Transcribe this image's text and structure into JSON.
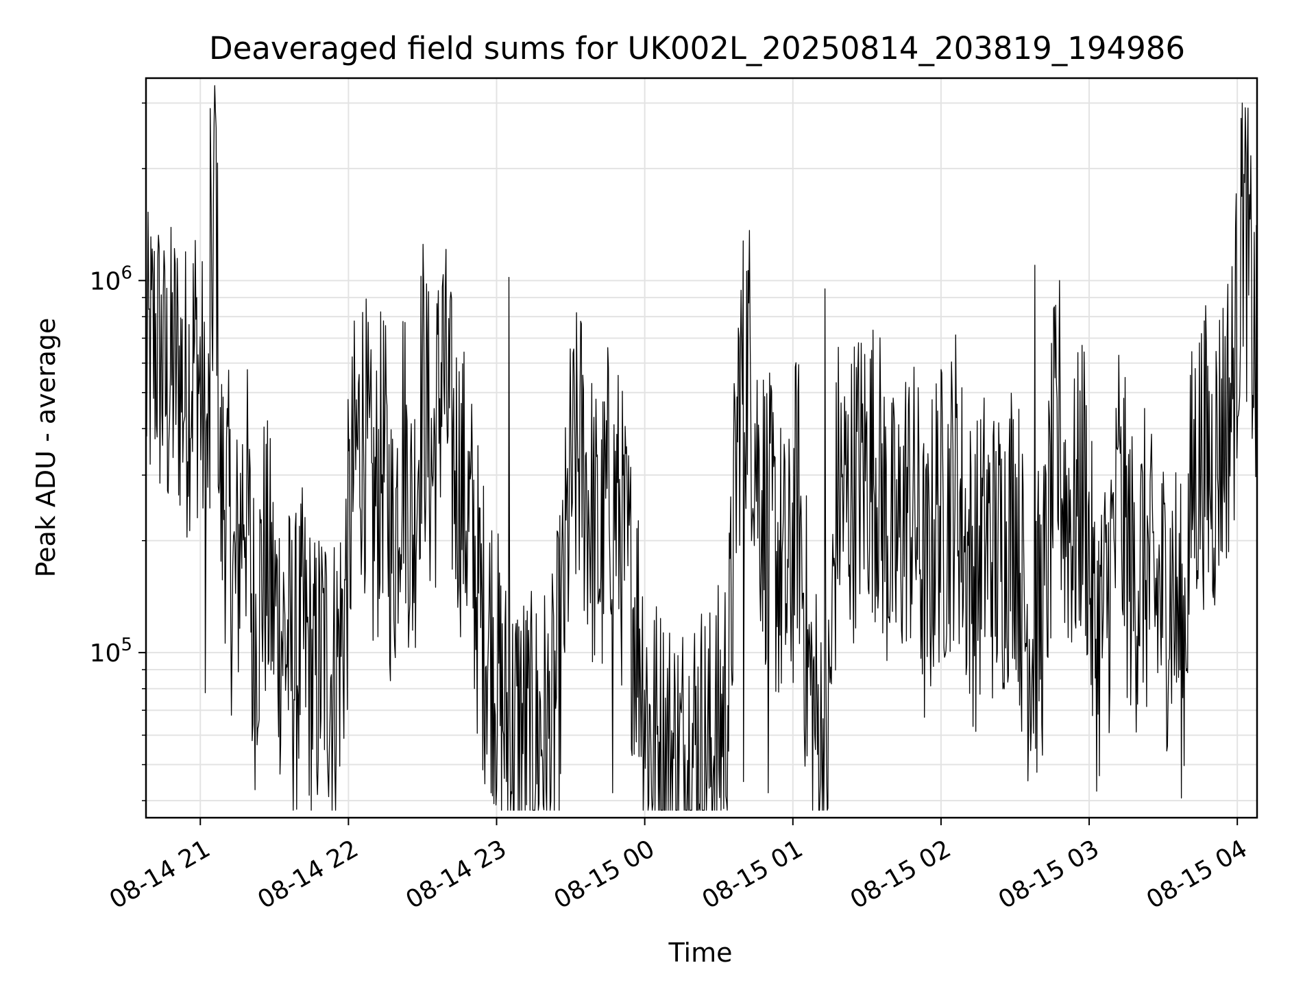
{
  "chart_data": {
    "type": "line",
    "title": "Deaveraged field sums for UK002L_20250814_203819_194986",
    "xlabel": "Time",
    "ylabel": "Peak ADU - average",
    "y_scale": "log",
    "grid": true,
    "x_range": [
      "2025-08-14 20:38",
      "2025-08-15 04:08"
    ],
    "ylim": [
      36000,
      3500000
    ],
    "x_ticks": [
      {
        "time": "2025-08-14 21:00",
        "label": "08-14 21"
      },
      {
        "time": "2025-08-14 22:00",
        "label": "08-14 22"
      },
      {
        "time": "2025-08-14 23:00",
        "label": "08-14 23"
      },
      {
        "time": "2025-08-15 00:00",
        "label": "08-15 00"
      },
      {
        "time": "2025-08-15 01:00",
        "label": "08-15 01"
      },
      {
        "time": "2025-08-15 02:00",
        "label": "08-15 02"
      },
      {
        "time": "2025-08-15 03:00",
        "label": "08-15 03"
      },
      {
        "time": "2025-08-15 04:00",
        "label": "08-15 04"
      }
    ],
    "y_ticks": [
      {
        "value": 100000,
        "base": "10",
        "exp": "5"
      },
      {
        "value": 1000000,
        "base": "10",
        "exp": "6"
      }
    ],
    "line_color": "#000000",
    "series": [
      {
        "x": [
          "2025-08-14 20:38",
          "2025-08-14 20:42",
          "2025-08-14 20:46",
          "2025-08-14 20:50",
          "2025-08-14 20:54",
          "2025-08-14 20:58",
          "2025-08-14 21:01",
          "2025-08-14 21:02",
          "2025-08-14 21:04",
          "2025-08-14 21:06",
          "2025-08-14 21:08",
          "2025-08-14 21:10",
          "2025-08-14 21:14",
          "2025-08-14 21:18",
          "2025-08-14 21:22",
          "2025-08-14 21:26",
          "2025-08-14 21:30",
          "2025-08-14 21:34",
          "2025-08-14 21:38",
          "2025-08-14 21:42",
          "2025-08-14 21:46",
          "2025-08-14 21:50",
          "2025-08-14 21:54",
          "2025-08-14 21:58",
          "2025-08-14 22:02",
          "2025-08-14 22:06",
          "2025-08-14 22:10",
          "2025-08-14 22:14",
          "2025-08-14 22:18",
          "2025-08-14 22:22",
          "2025-08-14 22:26",
          "2025-08-14 22:30",
          "2025-08-14 22:34",
          "2025-08-14 22:38",
          "2025-08-14 22:42",
          "2025-08-14 22:46",
          "2025-08-14 22:50",
          "2025-08-14 22:54",
          "2025-08-14 22:58",
          "2025-08-14 23:02",
          "2025-08-14 23:06",
          "2025-08-14 23:10",
          "2025-08-14 23:14",
          "2025-08-14 23:18",
          "2025-08-14 23:22",
          "2025-08-14 23:26",
          "2025-08-14 23:30",
          "2025-08-14 23:34",
          "2025-08-14 23:38",
          "2025-08-14 23:42",
          "2025-08-14 23:46",
          "2025-08-14 23:50",
          "2025-08-14 23:54",
          "2025-08-14 23:58",
          "2025-08-15 00:02",
          "2025-08-15 00:06",
          "2025-08-15 00:10",
          "2025-08-15 00:14",
          "2025-08-15 00:18",
          "2025-08-15 00:22",
          "2025-08-15 00:26",
          "2025-08-15 00:30",
          "2025-08-15 00:34",
          "2025-08-15 00:38",
          "2025-08-15 00:42",
          "2025-08-15 00:46",
          "2025-08-15 00:50",
          "2025-08-15 00:54",
          "2025-08-15 00:58",
          "2025-08-15 01:02",
          "2025-08-15 01:06",
          "2025-08-15 01:10",
          "2025-08-15 01:14",
          "2025-08-15 01:18",
          "2025-08-15 01:22",
          "2025-08-15 01:26",
          "2025-08-15 01:30",
          "2025-08-15 01:34",
          "2025-08-15 01:38",
          "2025-08-15 01:42",
          "2025-08-15 01:46",
          "2025-08-15 01:50",
          "2025-08-15 01:54",
          "2025-08-15 01:58",
          "2025-08-15 02:02",
          "2025-08-15 02:06",
          "2025-08-15 02:10",
          "2025-08-15 02:14",
          "2025-08-15 02:18",
          "2025-08-15 02:22",
          "2025-08-15 02:26",
          "2025-08-15 02:30",
          "2025-08-15 02:34",
          "2025-08-15 02:38",
          "2025-08-15 02:42",
          "2025-08-15 02:46",
          "2025-08-15 02:50",
          "2025-08-15 02:54",
          "2025-08-15 02:58",
          "2025-08-15 03:02",
          "2025-08-15 03:06",
          "2025-08-15 03:10",
          "2025-08-15 03:14",
          "2025-08-15 03:18",
          "2025-08-15 03:22",
          "2025-08-15 03:26",
          "2025-08-15 03:30",
          "2025-08-15 03:34",
          "2025-08-15 03:38",
          "2025-08-15 03:42",
          "2025-08-15 03:46",
          "2025-08-15 03:50",
          "2025-08-15 03:54",
          "2025-08-15 03:58",
          "2025-08-15 04:01",
          "2025-08-15 04:03",
          "2025-08-15 04:05",
          "2025-08-15 04:08"
        ],
        "y": [
          550000,
          700000,
          500000,
          600000,
          500000,
          650000,
          450000,
          300000,
          380000,
          2900000,
          250000,
          280000,
          140000,
          300000,
          110000,
          180000,
          130000,
          110000,
          90000,
          110000,
          80000,
          100000,
          85000,
          120000,
          300000,
          420000,
          220000,
          350000,
          180000,
          400000,
          200000,
          550000,
          300000,
          600000,
          350000,
          280000,
          200000,
          120000,
          110000,
          70000,
          60000,
          65000,
          55000,
          62000,
          58000,
          100000,
          280000,
          350000,
          240000,
          180000,
          300000,
          220000,
          150000,
          110000,
          60000,
          55000,
          52000,
          50000,
          55000,
          58000,
          52000,
          60000,
          80000,
          480000,
          650000,
          300000,
          220000,
          180000,
          140000,
          280000,
          90000,
          60000,
          50000,
          280000,
          250000,
          300000,
          320000,
          320000,
          220000,
          180000,
          260000,
          230000,
          140000,
          240000,
          230000,
          300000,
          190000,
          160000,
          210000,
          180000,
          200000,
          250000,
          120000,
          110000,
          140000,
          350000,
          260000,
          220000,
          300000,
          110000,
          120000,
          200000,
          220000,
          150000,
          180000,
          140000,
          140000,
          150000,
          100000,
          300000,
          350000,
          300000,
          400000,
          500000,
          1000000,
          1400000,
          1000000,
          500000
        ],
        "spikes": [
          {
            "x": "2025-08-14 20:45",
            "y": 920000
          },
          {
            "x": "2025-08-14 21:04",
            "y": 2900000
          },
          {
            "x": "2025-08-14 21:02",
            "y": 78000
          },
          {
            "x": "2025-08-14 21:21",
            "y": 58000
          },
          {
            "x": "2025-08-14 22:38",
            "y": 960000
          },
          {
            "x": "2025-08-14 23:05",
            "y": 1020000
          },
          {
            "x": "2025-08-14 23:47",
            "y": 42000
          },
          {
            "x": "2025-08-15 00:40",
            "y": 45000
          },
          {
            "x": "2025-08-15 00:50",
            "y": 42000
          },
          {
            "x": "2025-08-15 01:13",
            "y": 950000
          },
          {
            "x": "2025-08-15 02:38",
            "y": 1100000
          },
          {
            "x": "2025-08-15 02:48",
            "y": 1000000
          },
          {
            "x": "2025-08-15 03:12",
            "y": 630000
          },
          {
            "x": "2025-08-15 04:02",
            "y": 3000000
          }
        ]
      }
    ]
  }
}
